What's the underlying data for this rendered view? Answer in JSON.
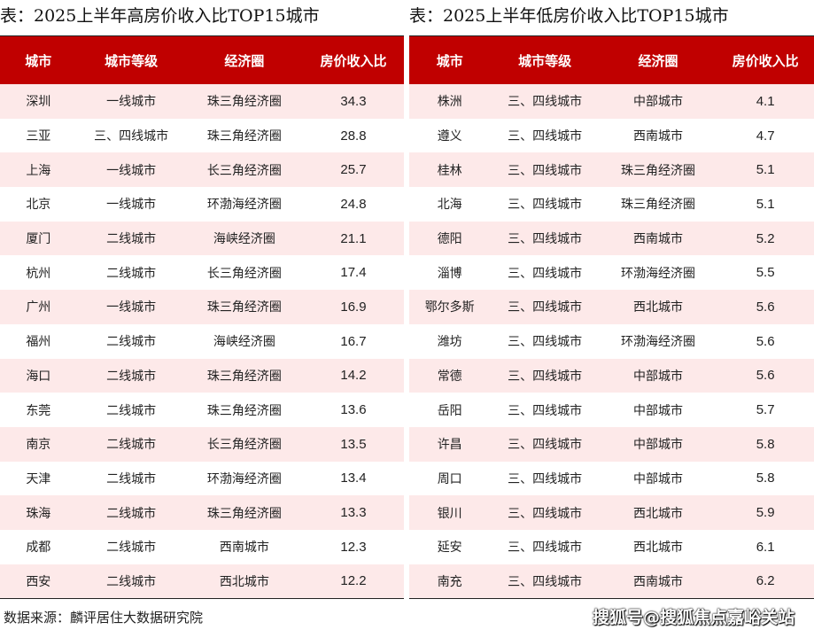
{
  "left": {
    "title": "表：2025上半年高房价收入比TOP15城市",
    "headers": [
      "城市",
      "城市等级",
      "经济圈",
      "房价收入比"
    ],
    "rows": [
      [
        "深圳",
        "一线城市",
        "珠三角经济圈",
        "34.3"
      ],
      [
        "三亚",
        "三、四线城市",
        "珠三角经济圈",
        "28.8"
      ],
      [
        "上海",
        "一线城市",
        "长三角经济圈",
        "25.7"
      ],
      [
        "北京",
        "一线城市",
        "环渤海经济圈",
        "24.8"
      ],
      [
        "厦门",
        "二线城市",
        "海峡经济圈",
        "21.1"
      ],
      [
        "杭州",
        "二线城市",
        "长三角经济圈",
        "17.4"
      ],
      [
        "广州",
        "一线城市",
        "珠三角经济圈",
        "16.9"
      ],
      [
        "福州",
        "二线城市",
        "海峡经济圈",
        "16.7"
      ],
      [
        "海口",
        "二线城市",
        "珠三角经济圈",
        "14.2"
      ],
      [
        "东莞",
        "二线城市",
        "珠三角经济圈",
        "13.6"
      ],
      [
        "南京",
        "二线城市",
        "长三角经济圈",
        "13.5"
      ],
      [
        "天津",
        "二线城市",
        "环渤海经济圈",
        "13.4"
      ],
      [
        "珠海",
        "二线城市",
        "珠三角经济圈",
        "13.3"
      ],
      [
        "成都",
        "二线城市",
        "西南城市",
        "12.3"
      ],
      [
        "西安",
        "二线城市",
        "西北城市",
        "12.2"
      ]
    ]
  },
  "right": {
    "title": "表：2025上半年低房价收入比TOP15城市",
    "headers": [
      "城市",
      "城市等级",
      "经济圈",
      "房价收入比"
    ],
    "rows": [
      [
        "株洲",
        "三、四线城市",
        "中部城市",
        "4.1"
      ],
      [
        "遵义",
        "三、四线城市",
        "西南城市",
        "4.7"
      ],
      [
        "桂林",
        "三、四线城市",
        "珠三角经济圈",
        "5.1"
      ],
      [
        "北海",
        "三、四线城市",
        "珠三角经济圈",
        "5.1"
      ],
      [
        "德阳",
        "三、四线城市",
        "西南城市",
        "5.2"
      ],
      [
        "淄博",
        "三、四线城市",
        "环渤海经济圈",
        "5.5"
      ],
      [
        "鄂尔多斯",
        "三、四线城市",
        "西北城市",
        "5.6"
      ],
      [
        "潍坊",
        "三、四线城市",
        "环渤海经济圈",
        "5.6"
      ],
      [
        "常德",
        "三、四线城市",
        "中部城市",
        "5.6"
      ],
      [
        "岳阳",
        "三、四线城市",
        "中部城市",
        "5.7"
      ],
      [
        "许昌",
        "三、四线城市",
        "中部城市",
        "5.8"
      ],
      [
        "周口",
        "三、四线城市",
        "中部城市",
        "5.8"
      ],
      [
        "银川",
        "三、四线城市",
        "西北城市",
        "5.9"
      ],
      [
        "延安",
        "三、四线城市",
        "西北城市",
        "6.1"
      ],
      [
        "南充",
        "三、四线城市",
        "西南城市",
        "6.2"
      ]
    ]
  },
  "footer": {
    "source": "数据来源：麟评居住大数据研究院"
  },
  "watermark": "搜狐号@搜狐焦点嘉峪关站",
  "colors": {
    "header_bg": "#c00000",
    "odd_row_bg": "#fde9e9"
  }
}
